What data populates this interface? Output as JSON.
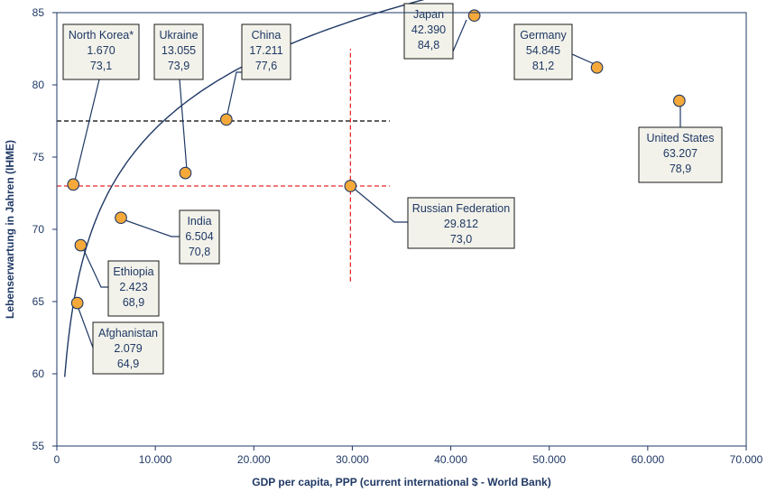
{
  "chart_data": {
    "type": "scatter",
    "title": "",
    "xlabel": "GDP per capita, PPP (current international $ - World Bank)",
    "ylabel": "Lebenserwartung in Jahren (IHME)",
    "xlim": [
      0,
      70000
    ],
    "ylim": [
      55,
      85
    ],
    "x_ticks": [
      0,
      10000,
      20000,
      30000,
      40000,
      50000,
      60000,
      70000
    ],
    "x_tick_labels": [
      "0",
      "10.000",
      "20.000",
      "30.000",
      "40.000",
      "50.000",
      "60.000",
      "70.000"
    ],
    "y_ticks": [
      55,
      60,
      65,
      70,
      75,
      80,
      85
    ],
    "y_tick_labels": [
      "55",
      "60",
      "65",
      "70",
      "75",
      "80",
      "85"
    ],
    "grid": false,
    "colors": {
      "axis": "#1f3864",
      "point_fill": "#f4a93a",
      "point_stroke": "#1f3864",
      "box_fill": "#f2f2ea",
      "red_guide": "#e8282b",
      "black_guide": "#000000"
    },
    "points": [
      {
        "country": "North Korea*",
        "gdp_label": "1.670",
        "le_label": "73,1",
        "x": 1670,
        "y": 73.1
      },
      {
        "country": "Ukraine",
        "gdp_label": "13.055",
        "le_label": "73,9",
        "x": 13055,
        "y": 73.9
      },
      {
        "country": "China",
        "gdp_label": "17.211",
        "le_label": "77,6",
        "x": 17211,
        "y": 77.6
      },
      {
        "country": "Japan",
        "gdp_label": "42.390",
        "le_label": "84,8",
        "x": 42390,
        "y": 84.8
      },
      {
        "country": "Germany",
        "gdp_label": "54.845",
        "le_label": "81,2",
        "x": 54845,
        "y": 81.2
      },
      {
        "country": "United States",
        "gdp_label": "63.207",
        "le_label": "78,9",
        "x": 63207,
        "y": 78.9
      },
      {
        "country": "Russian Federation",
        "gdp_label": "29.812",
        "le_label": "73,0",
        "x": 29812,
        "y": 73.0
      },
      {
        "country": "India",
        "gdp_label": "6.504",
        "le_label": "70,8",
        "x": 6504,
        "y": 70.8
      },
      {
        "country": "Ethiopia",
        "gdp_label": "2.423",
        "le_label": "68,9",
        "x": 2423,
        "y": 68.9
      },
      {
        "country": "Afghanistan",
        "gdp_label": "2.079",
        "le_label": "64,9",
        "x": 2079,
        "y": 64.9
      }
    ],
    "trendline": {
      "type": "logarithmic",
      "x_start": 800,
      "x_end": 70000,
      "a": 6.8,
      "b": 6.3
    },
    "guides": [
      {
        "kind": "horizontal",
        "color": "red",
        "y": 73.0,
        "x_from": 0,
        "x_to": 33800
      },
      {
        "kind": "horizontal",
        "color": "black",
        "y": 77.5,
        "x_from": 0,
        "x_to": 33800
      },
      {
        "kind": "vertical",
        "color": "red",
        "x": 29812,
        "y_from": 66.4,
        "y_to": 82.5
      }
    ]
  }
}
